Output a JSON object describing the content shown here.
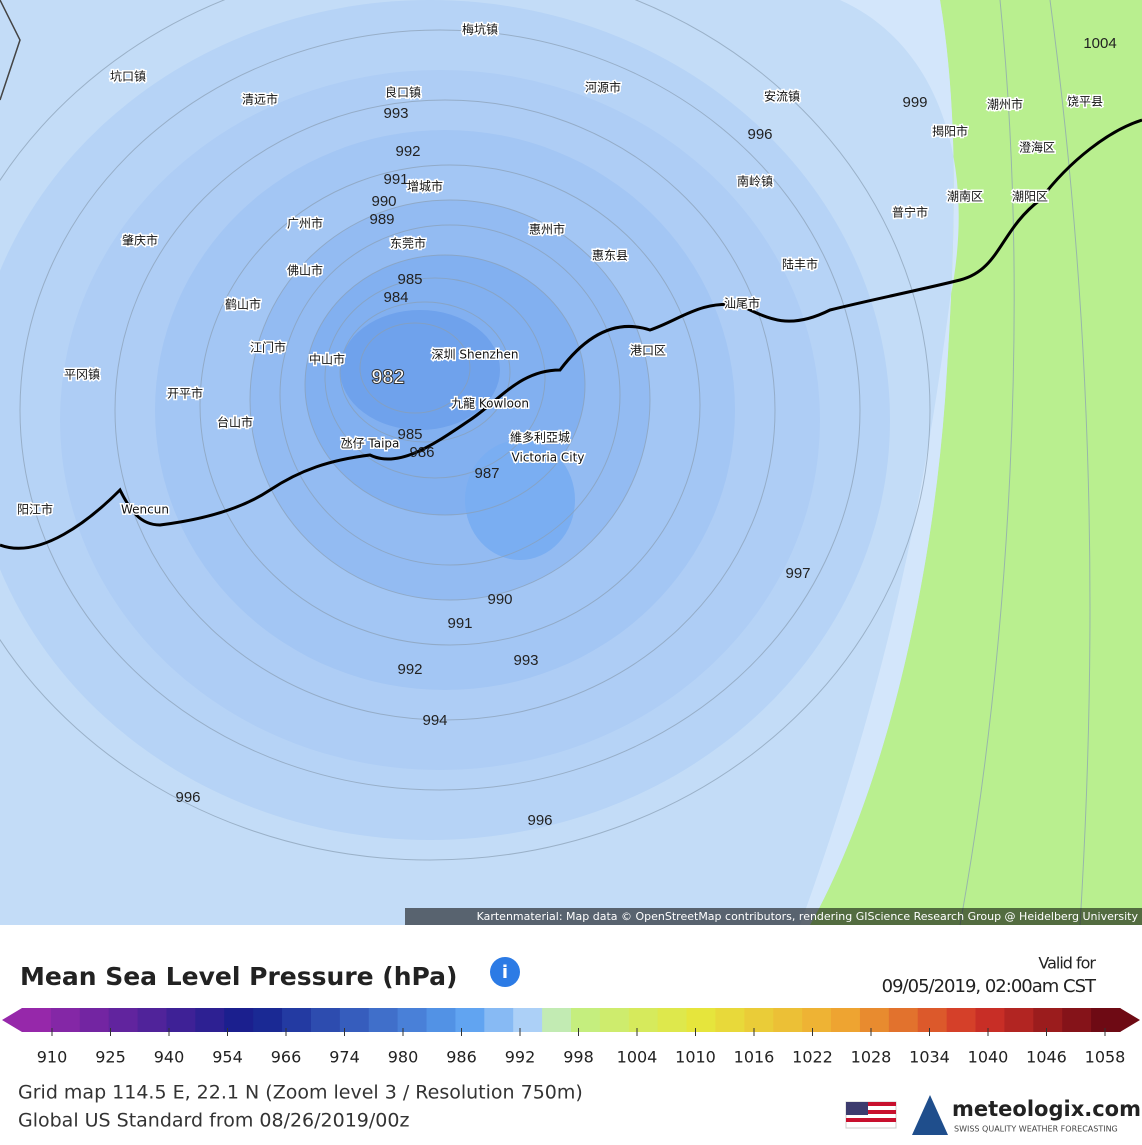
{
  "map": {
    "places": [
      "梅坑镇",
      "坑口镇",
      "清远市",
      "良口镇",
      "河源市",
      "安流镇",
      "潮州市",
      "饶平县",
      "揭阳市",
      "澄海区",
      "南岭镇",
      "增城市",
      "广州市",
      "惠州市",
      "肇庆市",
      "东莞市",
      "佛山市",
      "惠东县",
      "陆丰市",
      "潮南区",
      "潮阳区",
      "普宁市",
      "鹤山市",
      "汕尾市",
      "江门市",
      "中山市",
      "深圳 Shenzhen",
      "港口区",
      "平冈镇",
      "开平市",
      "九龍 Kowloon",
      "台山市",
      "維多利亞城",
      "Victoria City",
      "氹仔 Taipa",
      "阳江市",
      "Wencun"
    ],
    "contours": [
      "1004",
      "993",
      "992",
      "991",
      "990",
      "989",
      "985",
      "984",
      "982",
      "985",
      "986",
      "987",
      "990",
      "991",
      "992",
      "993",
      "994",
      "996",
      "996",
      "996",
      "997",
      "999"
    ],
    "attribution": "Kartenmaterial: Map data © OpenStreetMap contributors, rendering GIScience Research Group @ Heidelberg University"
  },
  "legend": {
    "title": "Mean Sea Level Pressure (hPa)",
    "info": "i",
    "valid_label": "Valid for",
    "valid_time": "09/05/2019, 02:00am CST",
    "ticks": [
      910,
      925,
      940,
      954,
      966,
      974,
      980,
      986,
      992,
      998,
      1004,
      1010,
      1016,
      1022,
      1028,
      1034,
      1040,
      1046,
      1058
    ]
  },
  "footer": {
    "line1": "Grid map 114.5 E, 22.1 N (Zoom level 3 / Resolution 750m)",
    "line2": "Global US Standard from 08/26/2019/00z",
    "brand": "meteologix.com",
    "tagline": "SWISS QUALITY WEATHER FORECASTING"
  }
}
